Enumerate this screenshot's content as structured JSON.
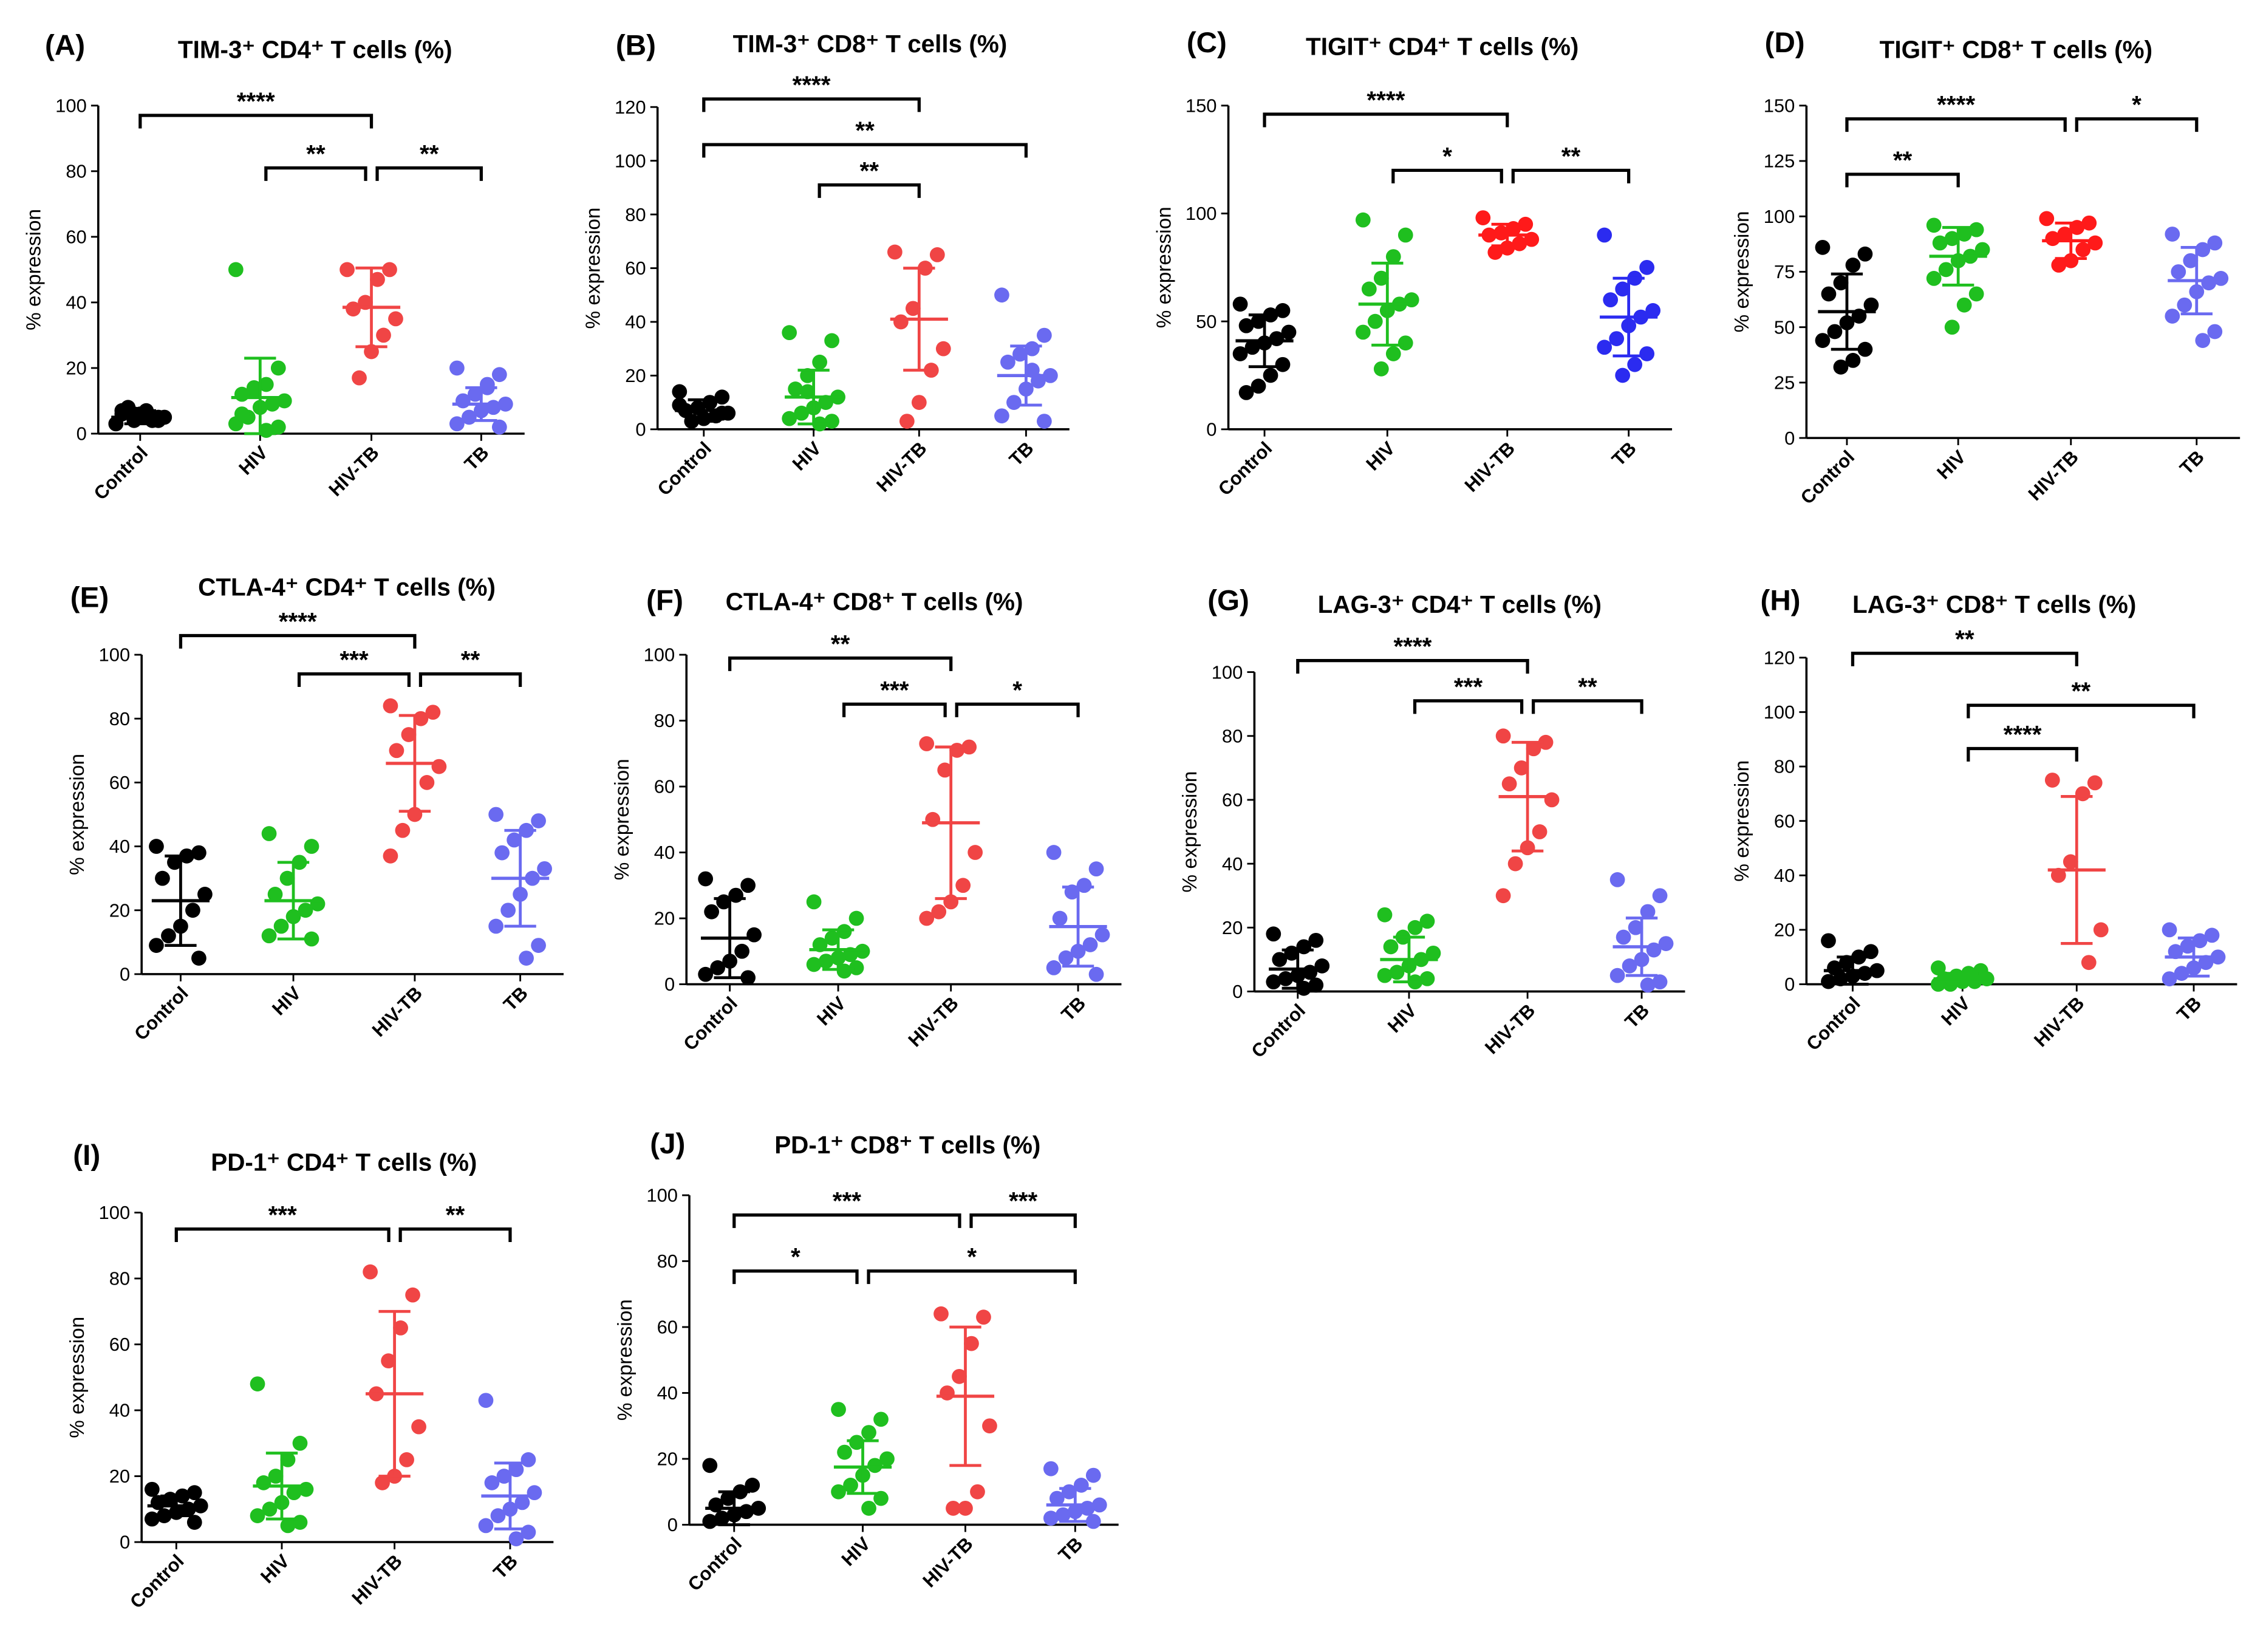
{
  "chart_data": [
    {
      "type": "scatter",
      "panel": "(A)",
      "title": "TIM-3⁺ CD4⁺ T cells (%)",
      "ylabel": "% expression",
      "ylim": [
        0,
        100
      ],
      "ytick_step": 20,
      "categories": [
        "Control",
        "HIV",
        "HIV-TB",
        "TB"
      ],
      "colors": [
        "#000000",
        "#1fbf1f",
        "#f04545",
        "#6a6af0"
      ],
      "groups": [
        {
          "mean": 5,
          "sd": 2,
          "points": [
            3,
            4,
            5,
            6,
            7,
            5,
            4,
            6,
            8,
            3,
            5,
            7,
            4,
            6
          ]
        },
        {
          "mean": 11,
          "sd": 12,
          "points": [
            50,
            20,
            15,
            13,
            12,
            10,
            9,
            8,
            5,
            3,
            2,
            1,
            14,
            6
          ]
        },
        {
          "mean": 38.5,
          "sd": 12,
          "points": [
            50,
            50,
            47,
            40,
            38,
            35,
            30,
            25,
            17
          ]
        },
        {
          "mean": 9,
          "sd": 5,
          "points": [
            20,
            18,
            15,
            12,
            10,
            9,
            8,
            7,
            5,
            3,
            2,
            14
          ]
        }
      ],
      "brackets": [
        {
          "from": 0,
          "to": 2,
          "y": 97,
          "label": "****"
        },
        {
          "from": 1,
          "to": 2,
          "y": 81,
          "label": "**"
        },
        {
          "from": 2,
          "to": 3,
          "y": 81,
          "label": "**"
        }
      ]
    },
    {
      "type": "scatter",
      "panel": "(B)",
      "title": "TIM-3⁺ CD8⁺ T cells (%)",
      "ylabel": "% expression",
      "ylim": [
        0,
        120
      ],
      "ytick_step": 20,
      "categories": [
        "Control",
        "HIV",
        "HIV-TB",
        "TB"
      ],
      "colors": [
        "#000000",
        "#1fbf1f",
        "#f04545",
        "#6a6af0"
      ],
      "groups": [
        {
          "mean": 7,
          "sd": 4,
          "points": [
            14,
            12,
            10,
            8,
            7,
            6,
            5,
            4,
            3,
            9,
            6
          ]
        },
        {
          "mean": 12,
          "sd": 10,
          "points": [
            36,
            33,
            25,
            20,
            15,
            12,
            10,
            8,
            6,
            4,
            3,
            2,
            14
          ]
        },
        {
          "mean": 41,
          "sd": 19,
          "points": [
            66,
            65,
            60,
            45,
            40,
            30,
            22,
            10,
            3
          ]
        },
        {
          "mean": 20,
          "sd": 11,
          "points": [
            50,
            35,
            30,
            28,
            25,
            20,
            18,
            15,
            10,
            5,
            3,
            22
          ]
        }
      ],
      "brackets": [
        {
          "from": 0,
          "to": 2,
          "y": 123,
          "label": "****"
        },
        {
          "from": 0,
          "to": 3,
          "y": 106,
          "label": "**"
        },
        {
          "from": 1,
          "to": 2,
          "y": 91,
          "label": "**"
        }
      ]
    },
    {
      "type": "scatter",
      "panel": "(C)",
      "title": "TIGIT⁺ CD4⁺ T cells (%)",
      "ylabel": "% expression",
      "ylim": [
        0,
        150
      ],
      "ytick_step": 50,
      "categories": [
        "Control",
        "HIV",
        "HIV-TB",
        "TB"
      ],
      "colors": [
        "#000000",
        "#1fbf1f",
        "#ff1a1a",
        "#2b2bf0"
      ],
      "groups": [
        {
          "mean": 41,
          "sd": 12,
          "points": [
            58,
            55,
            53,
            50,
            48,
            45,
            42,
            40,
            38,
            35,
            30,
            25,
            20,
            17
          ]
        },
        {
          "mean": 58,
          "sd": 19,
          "points": [
            97,
            90,
            80,
            70,
            65,
            60,
            58,
            55,
            50,
            45,
            40,
            35,
            28
          ]
        },
        {
          "mean": 90,
          "sd": 5,
          "points": [
            98,
            95,
            93,
            91,
            90,
            88,
            86,
            84,
            82
          ]
        },
        {
          "mean": 52,
          "sd": 18,
          "points": [
            90,
            75,
            70,
            65,
            60,
            55,
            52,
            48,
            42,
            38,
            35,
            30,
            25
          ]
        }
      ],
      "brackets": [
        {
          "from": 0,
          "to": 2,
          "y": 146,
          "label": "****"
        },
        {
          "from": 1,
          "to": 2,
          "y": 120,
          "label": "*"
        },
        {
          "from": 2,
          "to": 3,
          "y": 120,
          "label": "**"
        }
      ]
    },
    {
      "type": "scatter",
      "panel": "(D)",
      "title": "TIGIT⁺ CD8⁺ T cells (%)",
      "ylabel": "% expression",
      "ylim": [
        0,
        150
      ],
      "ytick_step": 25,
      "categories": [
        "Control",
        "HIV",
        "HIV-TB",
        "TB"
      ],
      "colors": [
        "#000000",
        "#1fbf1f",
        "#ff1a1a",
        "#6a6af0"
      ],
      "groups": [
        {
          "mean": 57,
          "sd": 17,
          "points": [
            86,
            83,
            78,
            70,
            65,
            60,
            55,
            52,
            48,
            44,
            40,
            35,
            32
          ]
        },
        {
          "mean": 82,
          "sd": 13,
          "points": [
            96,
            94,
            92,
            90,
            88,
            85,
            82,
            80,
            76,
            72,
            65,
            60,
            50
          ]
        },
        {
          "mean": 89,
          "sd": 8,
          "points": [
            99,
            97,
            95,
            92,
            90,
            88,
            85,
            80,
            78
          ]
        },
        {
          "mean": 71,
          "sd": 15,
          "points": [
            92,
            88,
            85,
            80,
            75,
            72,
            70,
            66,
            60,
            55,
            48,
            44
          ]
        }
      ],
      "brackets": [
        {
          "from": 0,
          "to": 2,
          "y": 144,
          "label": "****"
        },
        {
          "from": 2,
          "to": 3,
          "y": 144,
          "label": "*"
        },
        {
          "from": 0,
          "to": 1,
          "y": 119,
          "label": "**"
        }
      ]
    },
    {
      "type": "scatter",
      "panel": "(E)",
      "title": "CTLA-4⁺ CD4⁺ T cells (%)",
      "ylabel": "% expression",
      "ylim": [
        0,
        100
      ],
      "ytick_step": 20,
      "categories": [
        "Control",
        "HIV",
        "HIV-TB",
        "TB"
      ],
      "colors": [
        "#000000",
        "#1fbf1f",
        "#f04545",
        "#6a6af0"
      ],
      "groups": [
        {
          "mean": 23,
          "sd": 14,
          "points": [
            40,
            38,
            37,
            35,
            30,
            25,
            20,
            15,
            12,
            9,
            5
          ]
        },
        {
          "mean": 23,
          "sd": 12,
          "points": [
            44,
            40,
            35,
            30,
            25,
            22,
            20,
            18,
            15,
            12,
            11
          ]
        },
        {
          "mean": 66,
          "sd": 15,
          "points": [
            84,
            82,
            80,
            75,
            70,
            65,
            60,
            50,
            45,
            37
          ]
        },
        {
          "mean": 30,
          "sd": 15,
          "points": [
            50,
            48,
            45,
            42,
            38,
            33,
            30,
            25,
            20,
            15,
            9,
            5
          ]
        }
      ],
      "brackets": [
        {
          "from": 0,
          "to": 2,
          "y": 106,
          "label": "****"
        },
        {
          "from": 1,
          "to": 2,
          "y": 94,
          "label": "***"
        },
        {
          "from": 2,
          "to": 3,
          "y": 94,
          "label": "**"
        }
      ]
    },
    {
      "type": "scatter",
      "panel": "(F)",
      "title": "CTLA-4⁺ CD8⁺ T cells (%)",
      "ylabel": "% expression",
      "ylim": [
        0,
        100
      ],
      "ytick_step": 20,
      "categories": [
        "Control",
        "HIV",
        "HIV-TB",
        "TB"
      ],
      "colors": [
        "#000000",
        "#1fbf1f",
        "#f04545",
        "#6a6af0"
      ],
      "groups": [
        {
          "mean": 14,
          "sd": 12,
          "points": [
            32,
            30,
            27,
            25,
            22,
            15,
            10,
            7,
            5,
            3,
            2
          ]
        },
        {
          "mean": 10.5,
          "sd": 6,
          "points": [
            25,
            20,
            16,
            14,
            12,
            10,
            9,
            8,
            7,
            6,
            5,
            4
          ]
        },
        {
          "mean": 49,
          "sd": 23,
          "points": [
            73,
            72,
            71,
            65,
            50,
            40,
            30,
            25,
            22,
            20
          ]
        },
        {
          "mean": 17.5,
          "sd": 12,
          "points": [
            40,
            35,
            30,
            28,
            20,
            15,
            12,
            10,
            8,
            5,
            3
          ]
        }
      ],
      "brackets": [
        {
          "from": 0,
          "to": 2,
          "y": 99,
          "label": "**"
        },
        {
          "from": 1,
          "to": 2,
          "y": 85,
          "label": "***"
        },
        {
          "from": 2,
          "to": 3,
          "y": 85,
          "label": "*"
        }
      ]
    },
    {
      "type": "scatter",
      "panel": "(G)",
      "title": "LAG-3⁺ CD4⁺ T cells (%)",
      "ylabel": "% expression",
      "ylim": [
        0,
        100
      ],
      "ytick_step": 20,
      "categories": [
        "Control",
        "HIV",
        "HIV-TB",
        "TB"
      ],
      "colors": [
        "#000000",
        "#1fbf1f",
        "#f04545",
        "#6a6af0"
      ],
      "groups": [
        {
          "mean": 7,
          "sd": 6,
          "points": [
            18,
            16,
            14,
            12,
            10,
            8,
            6,
            5,
            4,
            3,
            2,
            1
          ]
        },
        {
          "mean": 10,
          "sd": 7,
          "points": [
            24,
            22,
            20,
            17,
            14,
            12,
            10,
            8,
            6,
            5,
            4,
            3
          ]
        },
        {
          "mean": 61,
          "sd": 17,
          "points": [
            80,
            78,
            76,
            70,
            65,
            60,
            50,
            45,
            40,
            30
          ]
        },
        {
          "mean": 14,
          "sd": 9,
          "points": [
            35,
            30,
            25,
            20,
            17,
            15,
            13,
            10,
            8,
            5,
            3,
            2
          ]
        }
      ],
      "brackets": [
        {
          "from": 0,
          "to": 2,
          "y": 103.6,
          "label": "****"
        },
        {
          "from": 1,
          "to": 2,
          "y": 91,
          "label": "***"
        },
        {
          "from": 2,
          "to": 3,
          "y": 91,
          "label": "**"
        }
      ]
    },
    {
      "type": "scatter",
      "panel": "(H)",
      "title": "LAG-3⁺ CD8⁺ T cells (%)",
      "ylabel": "% expression",
      "ylim": [
        0,
        120
      ],
      "ytick_step": 20,
      "categories": [
        "Control",
        "HIV",
        "HIV-TB",
        "TB"
      ],
      "colors": [
        "#000000",
        "#1fbf1f",
        "#f04545",
        "#6a6af0"
      ],
      "groups": [
        {
          "mean": 5,
          "sd": 5,
          "points": [
            16,
            12,
            10,
            8,
            6,
            5,
            4,
            3,
            2,
            1
          ]
        },
        {
          "mean": 2,
          "sd": 2,
          "points": [
            6,
            5,
            4,
            3,
            2,
            2,
            1,
            1,
            0,
            0
          ]
        },
        {
          "mean": 42,
          "sd": 27,
          "points": [
            75,
            74,
            70,
            45,
            40,
            20,
            8
          ]
        },
        {
          "mean": 10,
          "sd": 7,
          "points": [
            20,
            18,
            16,
            14,
            12,
            10,
            8,
            6,
            4,
            2
          ]
        }
      ],
      "brackets": [
        {
          "from": 0,
          "to": 2,
          "y": 121.6,
          "label": "**"
        },
        {
          "from": 1,
          "to": 3,
          "y": 102.5,
          "label": "**"
        },
        {
          "from": 1,
          "to": 2,
          "y": 86.6,
          "label": "****"
        }
      ]
    },
    {
      "type": "scatter",
      "panel": "(I)",
      "title": "PD-1⁺ CD4⁺ T cells (%)",
      "ylabel": "% expression",
      "ylim": [
        0,
        100
      ],
      "ytick_step": 20,
      "categories": [
        "Control",
        "HIV",
        "HIV-TB",
        "TB"
      ],
      "colors": [
        "#000000",
        "#1fbf1f",
        "#f04545",
        "#6a6af0"
      ],
      "groups": [
        {
          "mean": 11,
          "sd": 3,
          "points": [
            16,
            15,
            14,
            13,
            12,
            11,
            10,
            9,
            8,
            7,
            6
          ]
        },
        {
          "mean": 17,
          "sd": 10,
          "points": [
            48,
            30,
            25,
            20,
            18,
            16,
            15,
            12,
            10,
            8,
            6,
            5
          ]
        },
        {
          "mean": 45,
          "sd": 25,
          "points": [
            82,
            75,
            65,
            55,
            45,
            35,
            25,
            20,
            18
          ]
        },
        {
          "mean": 14,
          "sd": 10,
          "points": [
            43,
            25,
            22,
            20,
            18,
            15,
            12,
            10,
            8,
            5,
            3,
            1
          ]
        }
      ],
      "brackets": [
        {
          "from": 0,
          "to": 2,
          "y": 95,
          "label": "***"
        },
        {
          "from": 2,
          "to": 3,
          "y": 95,
          "label": "**"
        }
      ]
    },
    {
      "type": "scatter",
      "panel": "(J)",
      "title": "PD-1⁺ CD8⁺ T cells (%)",
      "ylabel": "% expression",
      "ylim": [
        0,
        100
      ],
      "ytick_step": 20,
      "categories": [
        "Control",
        "HIV",
        "HIV-TB",
        "TB"
      ],
      "colors": [
        "#000000",
        "#1fbf1f",
        "#f04545",
        "#6a6af0"
      ],
      "groups": [
        {
          "mean": 5,
          "sd": 5,
          "points": [
            18,
            12,
            10,
            8,
            6,
            5,
            4,
            3,
            2,
            1
          ]
        },
        {
          "mean": 17.5,
          "sd": 8,
          "points": [
            35,
            32,
            28,
            25,
            22,
            20,
            18,
            15,
            12,
            10,
            8,
            5
          ]
        },
        {
          "mean": 39,
          "sd": 21,
          "points": [
            64,
            63,
            55,
            45,
            40,
            30,
            10,
            5,
            5
          ]
        },
        {
          "mean": 6,
          "sd": 5,
          "points": [
            17,
            15,
            12,
            10,
            8,
            6,
            5,
            4,
            3,
            2,
            1
          ]
        }
      ],
      "brackets": [
        {
          "from": 0,
          "to": 2,
          "y": 94,
          "label": "***"
        },
        {
          "from": 2,
          "to": 3,
          "y": 94,
          "label": "***"
        },
        {
          "from": 0,
          "to": 1,
          "y": 77,
          "label": "*"
        },
        {
          "from": 1,
          "to": 3,
          "y": 77,
          "label": "*"
        }
      ]
    }
  ]
}
